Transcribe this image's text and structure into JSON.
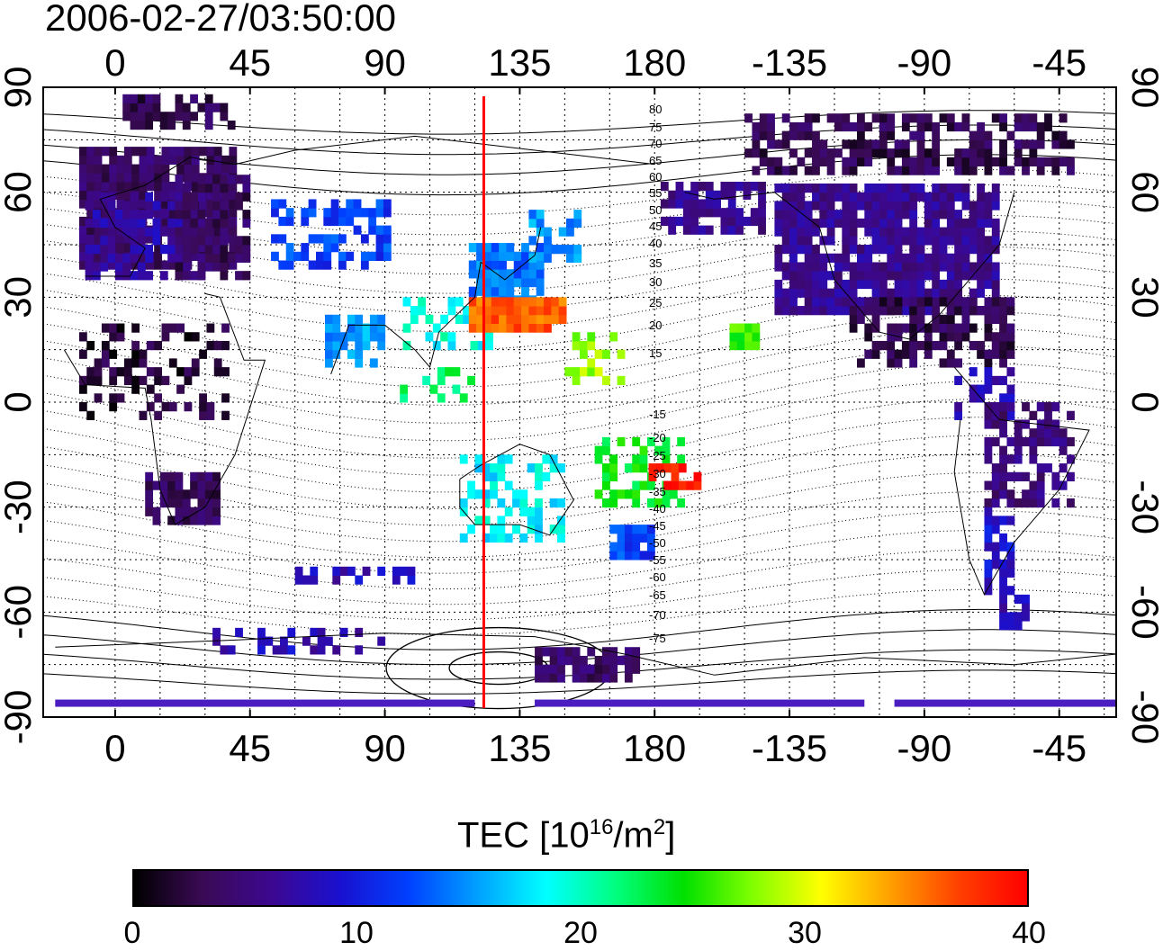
{
  "title": "2006-02-27/03:50:00",
  "map": {
    "x_tick_labels": [
      "0",
      "45",
      "90",
      "135",
      "180",
      "-135",
      "-90",
      "-45"
    ],
    "y_tick_labels": [
      "90",
      "60",
      "30",
      "0",
      "-30",
      "-60",
      "-90"
    ],
    "meridian_marker_longitude": 123,
    "contour_labels_north": [
      "80",
      "75",
      "70",
      "65",
      "60",
      "55",
      "50",
      "45",
      "40",
      "35",
      "30",
      "25",
      "20",
      "15"
    ],
    "contour_labels_south": [
      "-15",
      "-20",
      "-25",
      "-30",
      "-35",
      "-40",
      "-45",
      "-50",
      "-55",
      "-60",
      "-65",
      "-70",
      "-75"
    ],
    "marker_color": "#ff0000"
  },
  "colorbar": {
    "title_prefix": "TEC  [10",
    "title_exp1": "16",
    "title_mid": "/m",
    "title_exp2": "2",
    "title_suffix": "]",
    "tick_labels": [
      "0",
      "10",
      "20",
      "30",
      "40"
    ],
    "min": 0,
    "max": 40,
    "colormap": [
      "#000000",
      "#3a0a55",
      "#3c0890",
      "#1a10d0",
      "#0040ff",
      "#00a0ff",
      "#00ffff",
      "#00ff80",
      "#00e000",
      "#80ff00",
      "#ffff00",
      "#ffa000",
      "#ff4000",
      "#ff0000"
    ]
  }
}
